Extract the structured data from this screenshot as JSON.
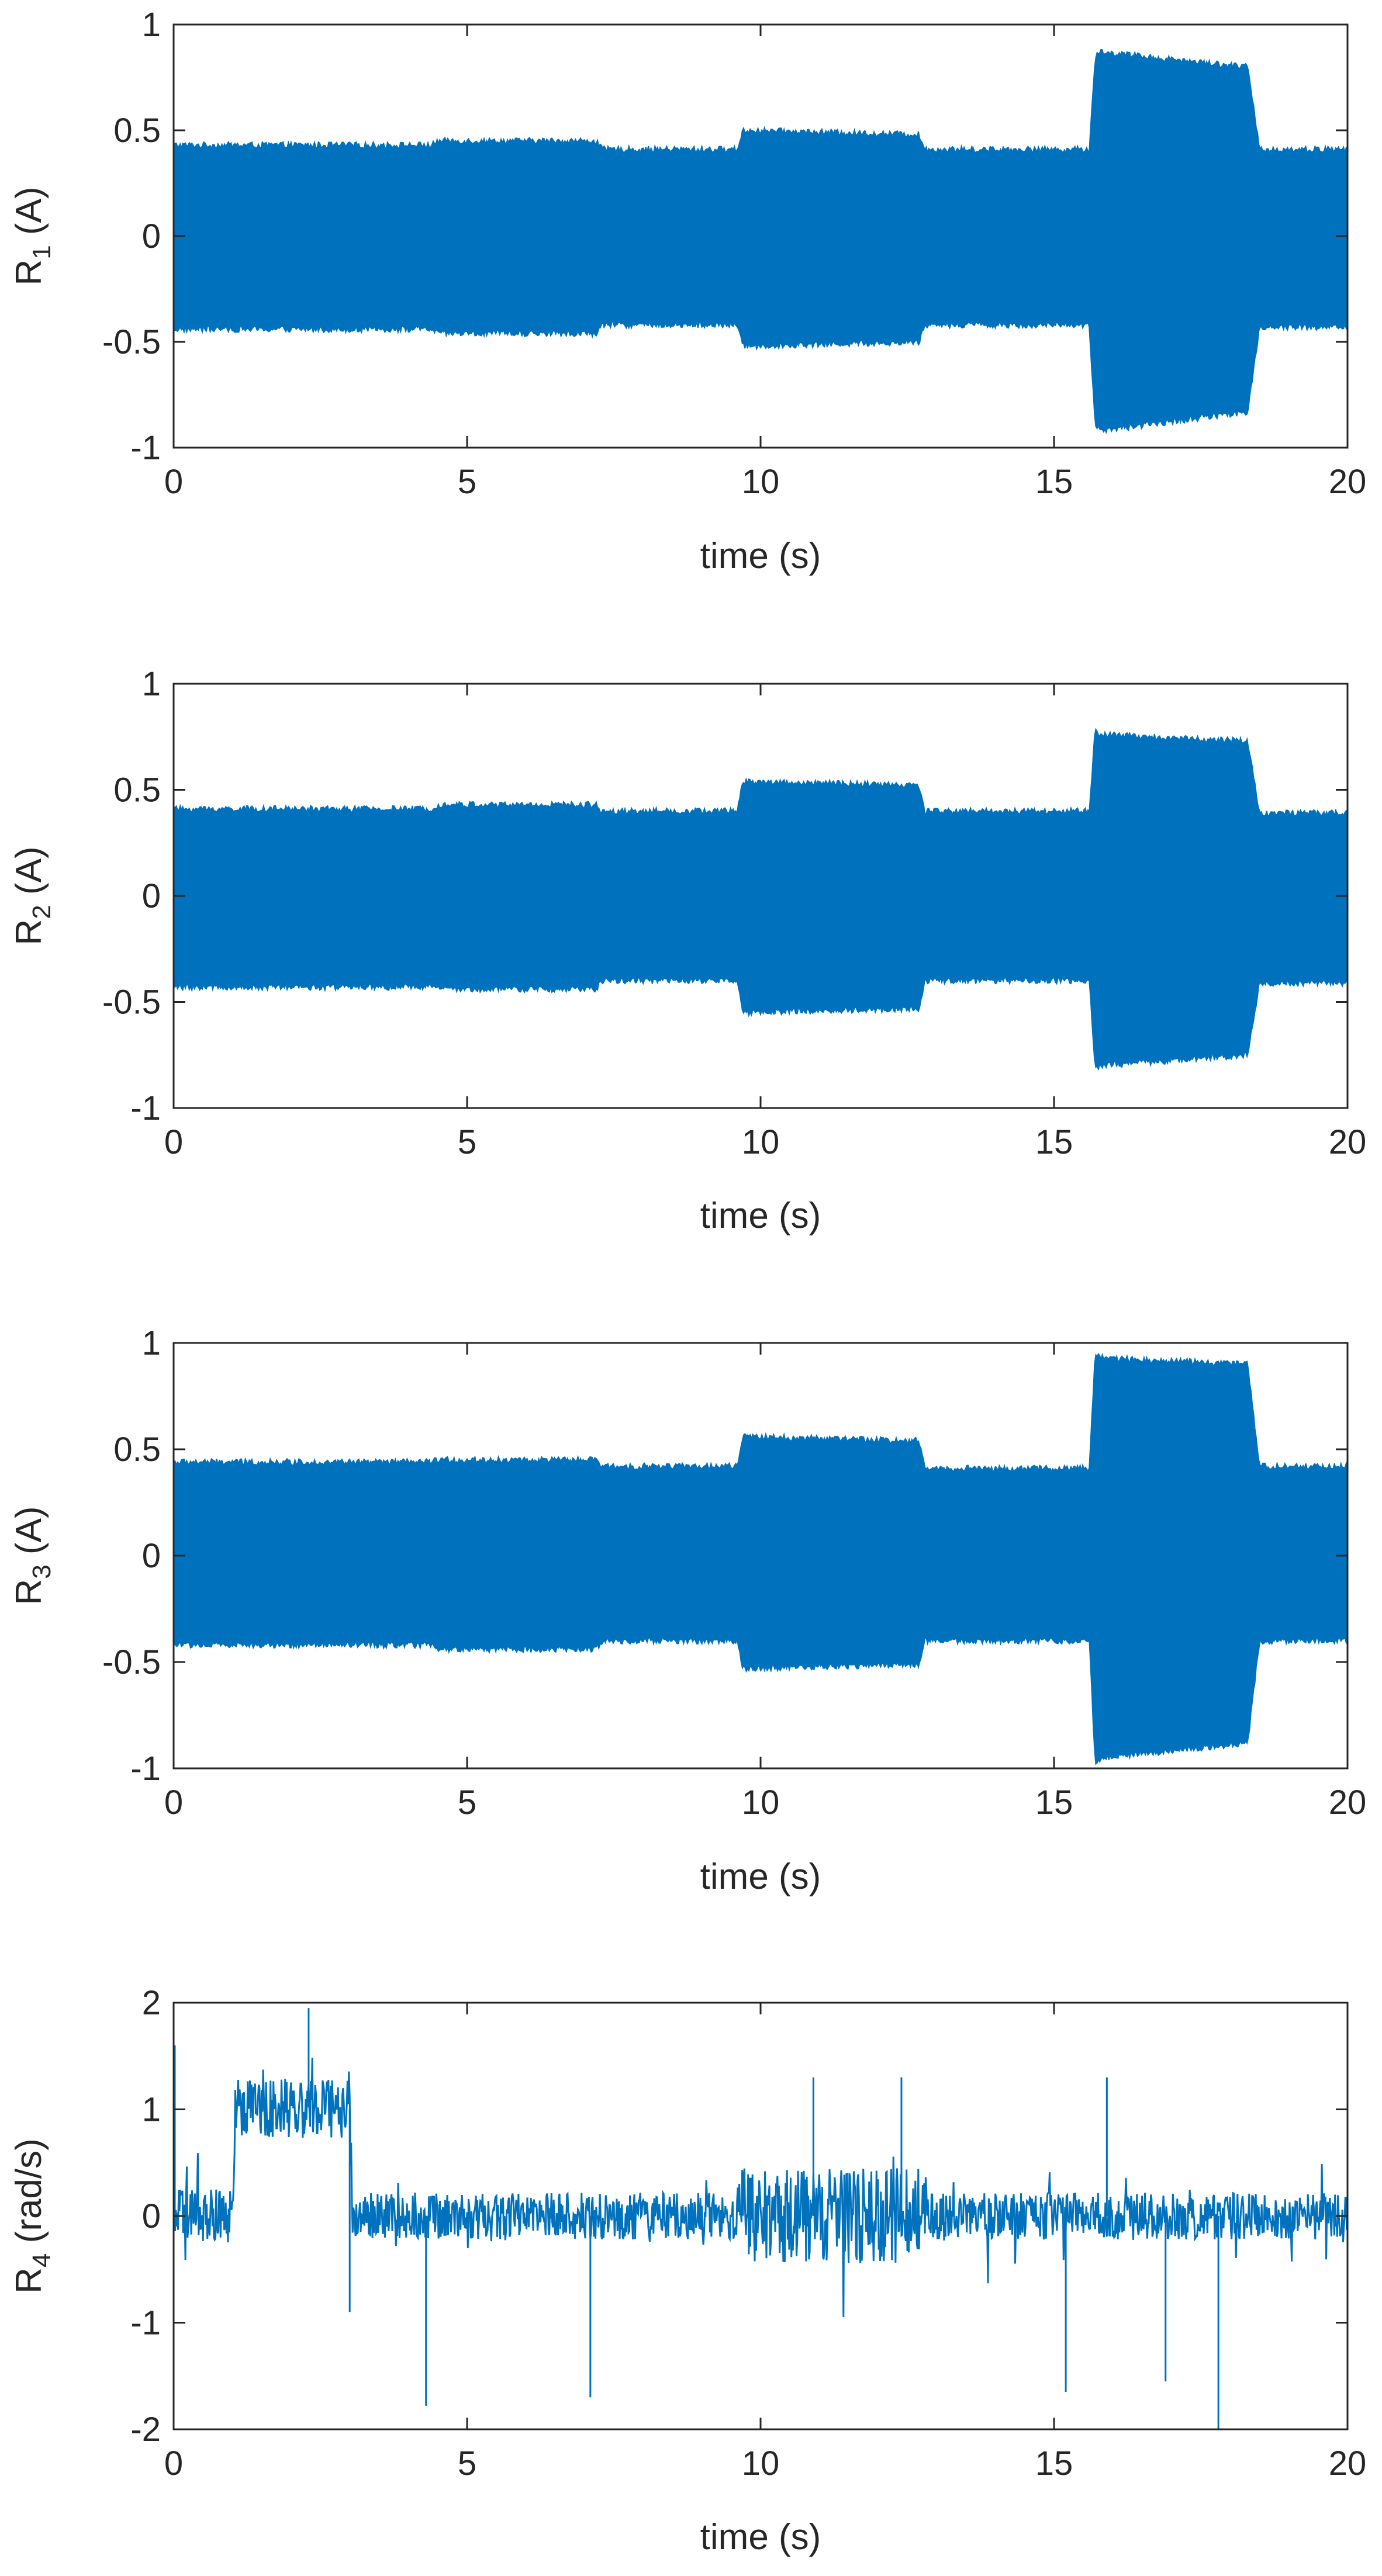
{
  "figure": {
    "line_color": "#0072BD",
    "axis_color": "#262626",
    "background": "#ffffff"
  },
  "chart_data": [
    {
      "type": "line",
      "signal": "band",
      "ylabel_main": "R",
      "ylabel_sub": "1",
      "ylabel_unit": " (A)",
      "xlabel": "time (s)",
      "xlim": [
        0,
        20
      ],
      "ylim": [
        -1,
        1
      ],
      "xticks": [
        0,
        5,
        10,
        15,
        20
      ],
      "yticks": [
        -1,
        -0.5,
        0,
        0.5,
        1
      ],
      "xtick_labels": [
        "0",
        "5",
        "10",
        "15",
        "20"
      ],
      "ytick_labels": [
        "-1",
        "-0.5",
        "0",
        "0.5",
        "1"
      ],
      "envelope": {
        "x": [
          0,
          4.4,
          4.5,
          7.2,
          7.3,
          9.6,
          9.7,
          12.7,
          12.8,
          15.6,
          15.7,
          15.8,
          18.3,
          18.5,
          20
        ],
        "upper": [
          0.43,
          0.43,
          0.45,
          0.45,
          0.41,
          0.41,
          0.5,
          0.48,
          0.41,
          0.41,
          0.85,
          0.87,
          0.8,
          0.41,
          0.41
        ],
        "lower": [
          -0.44,
          -0.44,
          -0.46,
          -0.46,
          -0.42,
          -0.42,
          -0.52,
          -0.5,
          -0.42,
          -0.42,
          -0.9,
          -0.92,
          -0.83,
          -0.43,
          -0.43
        ]
      }
    },
    {
      "type": "line",
      "signal": "band",
      "ylabel_main": "R",
      "ylabel_sub": "2",
      "ylabel_unit": " (A)",
      "xlabel": "time (s)",
      "xlim": [
        0,
        20
      ],
      "ylim": [
        -1,
        1
      ],
      "xticks": [
        0,
        5,
        10,
        15,
        20
      ],
      "yticks": [
        -1,
        -0.5,
        0,
        0.5,
        1
      ],
      "xtick_labels": [
        "0",
        "5",
        "10",
        "15",
        "20"
      ],
      "ytick_labels": [
        "-1",
        "-0.5",
        "0",
        "0.5",
        "1"
      ],
      "envelope": {
        "x": [
          0,
          4.4,
          4.5,
          7.2,
          7.3,
          9.6,
          9.7,
          12.7,
          12.8,
          15.6,
          15.7,
          15.8,
          18.3,
          18.5,
          20
        ],
        "upper": [
          0.41,
          0.41,
          0.43,
          0.43,
          0.4,
          0.4,
          0.54,
          0.52,
          0.4,
          0.4,
          0.78,
          0.76,
          0.73,
          0.39,
          0.39
        ],
        "lower": [
          -0.43,
          -0.43,
          -0.44,
          -0.44,
          -0.4,
          -0.4,
          -0.55,
          -0.53,
          -0.4,
          -0.4,
          -0.82,
          -0.8,
          -0.75,
          -0.41,
          -0.41
        ]
      }
    },
    {
      "type": "line",
      "signal": "band",
      "ylabel_main": "R",
      "ylabel_sub": "3",
      "ylabel_unit": " (A)",
      "xlabel": "time (s)",
      "xlim": [
        0,
        20
      ],
      "ylim": [
        -1,
        1
      ],
      "xticks": [
        0,
        5,
        10,
        15,
        20
      ],
      "yticks": [
        -1,
        -0.5,
        0,
        0.5,
        1
      ],
      "xtick_labels": [
        "0",
        "5",
        "10",
        "15",
        "20"
      ],
      "ytick_labels": [
        "-1",
        "-0.5",
        "0",
        "0.5",
        "1"
      ],
      "envelope": {
        "x": [
          0,
          4.4,
          4.5,
          7.2,
          7.3,
          9.6,
          9.7,
          12.7,
          12.8,
          15.6,
          15.7,
          15.8,
          18.3,
          18.5,
          20
        ],
        "upper": [
          0.44,
          0.44,
          0.45,
          0.45,
          0.42,
          0.42,
          0.56,
          0.54,
          0.41,
          0.41,
          0.95,
          0.93,
          0.9,
          0.42,
          0.42
        ],
        "lower": [
          -0.42,
          -0.42,
          -0.44,
          -0.44,
          -0.4,
          -0.4,
          -0.53,
          -0.51,
          -0.4,
          -0.4,
          -0.97,
          -0.95,
          -0.88,
          -0.4,
          -0.4
        ]
      }
    },
    {
      "type": "line",
      "signal": "noise",
      "ylabel_main": "R",
      "ylabel_sub": "4",
      "ylabel_unit": " (rad/s)",
      "xlabel": "time (s)",
      "xlim": [
        0,
        20
      ],
      "ylim": [
        -2,
        2
      ],
      "xticks": [
        0,
        5,
        10,
        15,
        20
      ],
      "yticks": [
        -2,
        -1,
        0,
        1,
        2
      ],
      "xtick_labels": [
        "0",
        "5",
        "10",
        "15",
        "20"
      ],
      "ytick_labels": [
        "-2",
        "-1",
        "0",
        "1",
        "2"
      ],
      "baseline": {
        "x": [
          0,
          1.0,
          1.05,
          3.0,
          3.05,
          9.6,
          9.65,
          12.8,
          12.85,
          20
        ],
        "level": [
          0.0,
          0.0,
          1.05,
          1.0,
          0.0,
          0.0,
          0.0,
          0.0,
          0.0,
          0.0
        ],
        "amplitude": [
          0.25,
          0.25,
          0.3,
          0.3,
          0.22,
          0.22,
          0.45,
          0.45,
          0.22,
          0.22
        ]
      },
      "spikes": [
        {
          "x": 0.02,
          "y": 1.6
        },
        {
          "x": 2.3,
          "y": 1.95
        },
        {
          "x": 3.0,
          "y": -0.9
        },
        {
          "x": 4.3,
          "y": -1.78
        },
        {
          "x": 7.1,
          "y": -1.7
        },
        {
          "x": 10.9,
          "y": 1.3
        },
        {
          "x": 12.4,
          "y": 1.3
        },
        {
          "x": 15.2,
          "y": -1.65
        },
        {
          "x": 15.9,
          "y": 1.3
        },
        {
          "x": 16.9,
          "y": -1.55
        },
        {
          "x": 17.8,
          "y": -2.0
        }
      ]
    }
  ]
}
